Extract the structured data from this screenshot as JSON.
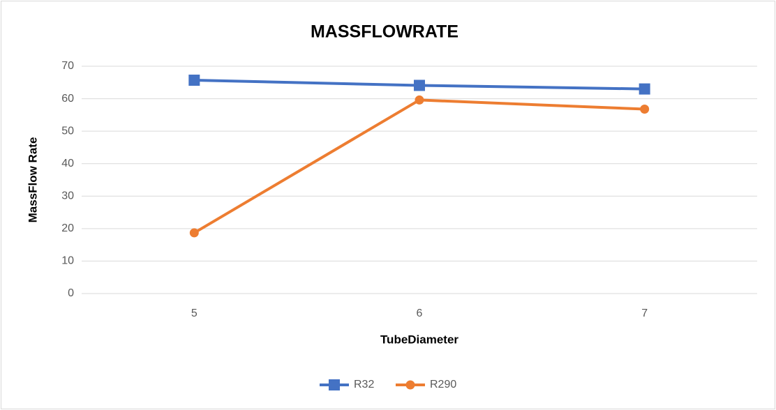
{
  "chart_data": {
    "type": "line",
    "title": "MASSFLOWRATE",
    "x_label": "TubeDiameter",
    "y_label": "MassFlow Rate",
    "categories": [
      "5",
      "6",
      "7"
    ],
    "series": [
      {
        "name": "R32",
        "color": "#4472c4",
        "marker": "square",
        "values": [
          65.7,
          64.1,
          63
        ]
      },
      {
        "name": "R290",
        "color": "#ed7d31",
        "marker": "circle",
        "values": [
          18.7,
          59.6,
          56.8
        ]
      }
    ],
    "ylim": [
      0,
      70
    ],
    "yticks": [
      0,
      10,
      20,
      30,
      40,
      50,
      60,
      70
    ],
    "grid": true,
    "legend": "bottom"
  }
}
